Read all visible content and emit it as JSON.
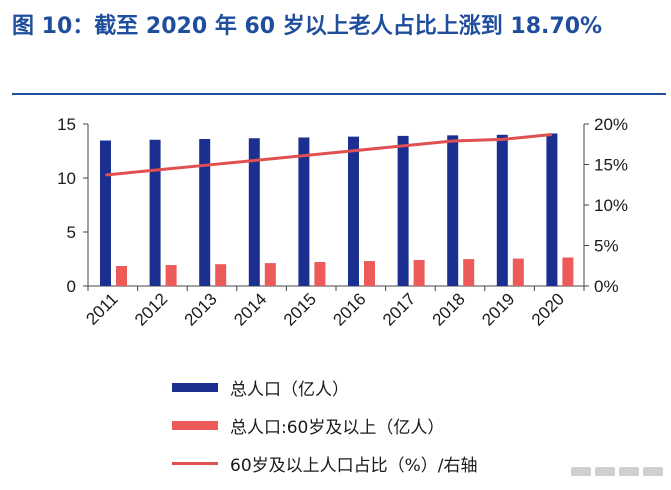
{
  "title": "图 10：截至 2020 年 60 岁以上老人占比上涨到 18.70%",
  "colors": {
    "title": "#1f4e9c",
    "total_bar": "#1a2f8f",
    "elder_bar": "#ec5a5a",
    "ratio_line": "#e05050"
  },
  "chart_data": {
    "type": "bar",
    "categories": [
      "2011",
      "2012",
      "2013",
      "2014",
      "2015",
      "2016",
      "2017",
      "2018",
      "2019",
      "2020"
    ],
    "series": [
      {
        "name": "总人口（亿人）",
        "type": "bar",
        "axis": "left",
        "values": [
          13.47,
          13.54,
          13.61,
          13.68,
          13.75,
          13.83,
          13.9,
          13.95,
          14.0,
          14.12
        ]
      },
      {
        "name": "总人口:60岁及以上（亿人）",
        "type": "bar",
        "axis": "left",
        "values": [
          1.85,
          1.94,
          2.02,
          2.12,
          2.22,
          2.31,
          2.41,
          2.49,
          2.54,
          2.64
        ]
      },
      {
        "name": "60岁及以上人口占比（%）/右轴",
        "type": "line",
        "axis": "right",
        "values": [
          13.7,
          14.3,
          14.9,
          15.5,
          16.1,
          16.7,
          17.3,
          17.9,
          18.1,
          18.7
        ]
      }
    ],
    "ylim_left": [
      0,
      15
    ],
    "yticks_left": [
      "0",
      "5",
      "10",
      "15"
    ],
    "ylim_right": [
      0,
      20
    ],
    "yticks_right": [
      "0%",
      "5%",
      "10%",
      "15%",
      "20%"
    ],
    "grid": false,
    "legend_position": "bottom"
  },
  "legend": [
    {
      "label": "总人口（亿人）",
      "kind": "bar"
    },
    {
      "label": "总人口:60岁及以上（亿人）",
      "kind": "bar"
    },
    {
      "label": "60岁及以上人口占比（%）/右轴",
      "kind": "line"
    }
  ]
}
